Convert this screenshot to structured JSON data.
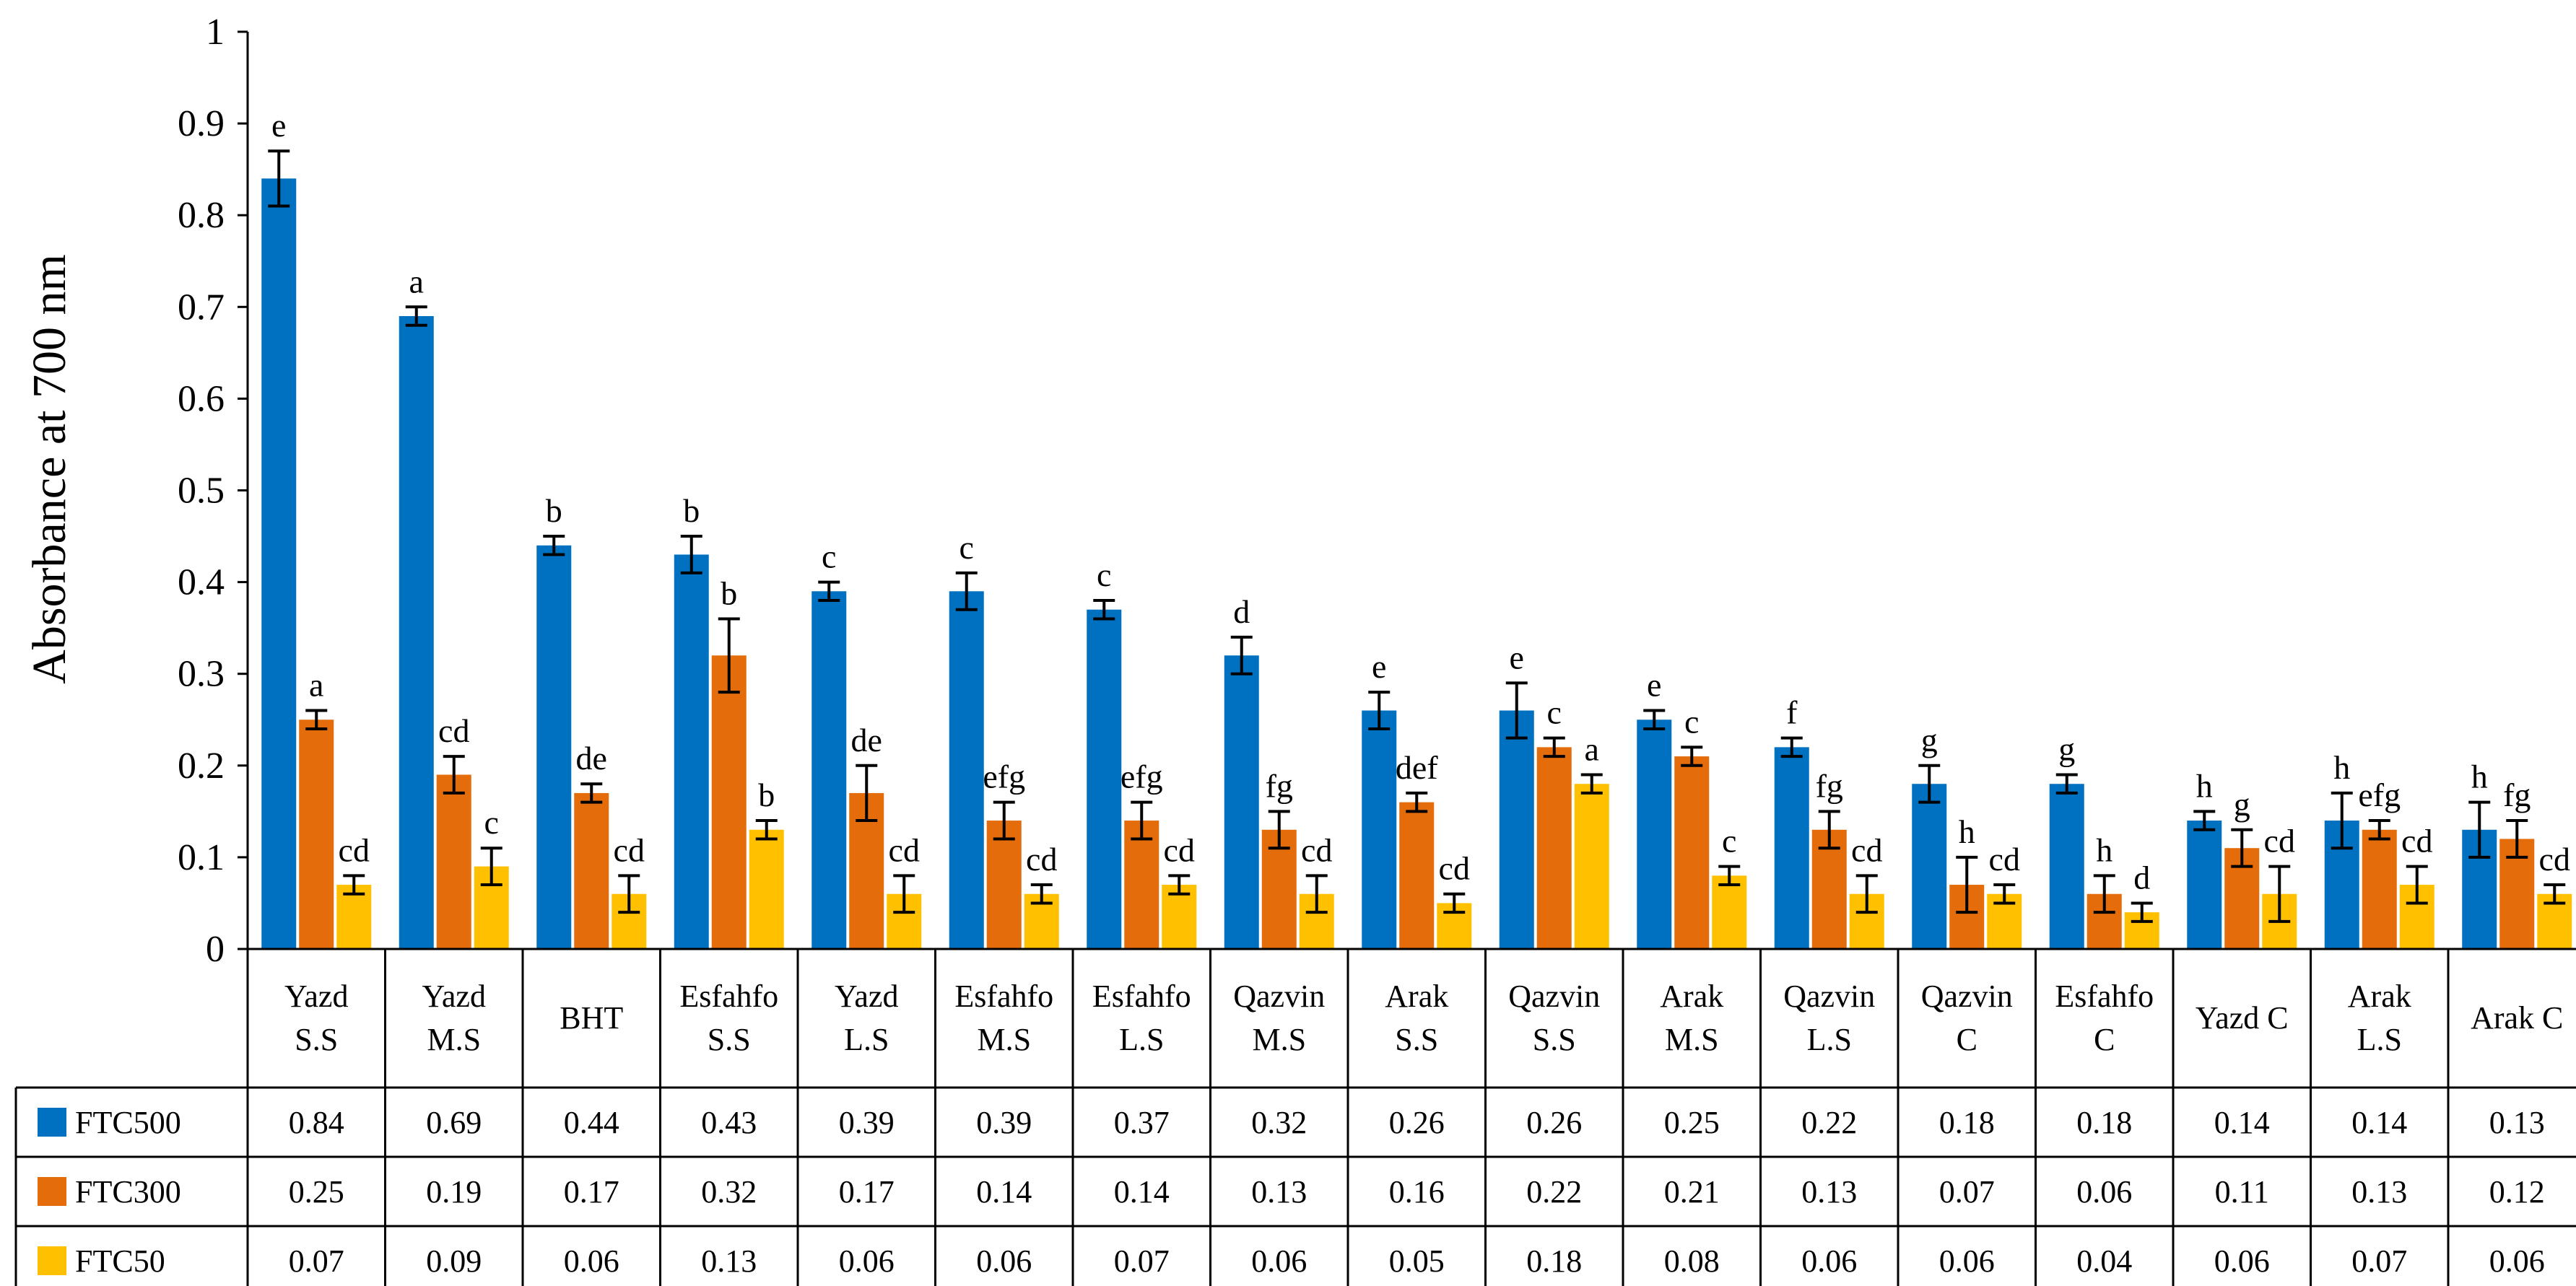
{
  "chart_data": {
    "type": "bar",
    "title": "",
    "xlabel": "",
    "ylabel": "Absorbance at 700 nm",
    "ylim": [
      0,
      1
    ],
    "yticks": [
      "0",
      "0.1",
      "0.2",
      "0.3",
      "0.4",
      "0.5",
      "0.6",
      "0.7",
      "0.8",
      "0.9",
      "1"
    ],
    "grid": false,
    "legend": "table-bottom",
    "categories": [
      [
        "Yazd",
        "S.S"
      ],
      [
        "Yazd",
        "M.S"
      ],
      [
        "BHT"
      ],
      [
        "Esfahfo",
        "S.S"
      ],
      [
        "Yazd",
        "L.S"
      ],
      [
        "Esfahfo",
        "M.S"
      ],
      [
        "Esfahfo",
        "L.S"
      ],
      [
        "Qazvin",
        "M.S"
      ],
      [
        "Arak",
        "S.S"
      ],
      [
        "Qazvin",
        "S.S"
      ],
      [
        "Arak",
        "M.S"
      ],
      [
        "Qazvin",
        "L.S"
      ],
      [
        "Qazvin",
        "C"
      ],
      [
        "Esfahfo",
        "C"
      ],
      [
        "Yazd C"
      ],
      [
        "Arak",
        "L.S"
      ],
      [
        "Arak C"
      ]
    ],
    "series": [
      {
        "name": "FTC500",
        "color": "#0070C0",
        "values": [
          0.84,
          0.69,
          0.44,
          0.43,
          0.39,
          0.39,
          0.37,
          0.32,
          0.26,
          0.26,
          0.25,
          0.22,
          0.18,
          0.18,
          0.14,
          0.14,
          0.13
        ],
        "labels": [
          "0.84",
          "0.69",
          "0.44",
          "0.43",
          "0.39",
          "0.39",
          "0.37",
          "0.32",
          "0.26",
          "0.26",
          "0.25",
          "0.22",
          "0.18",
          "0.18",
          "0.14",
          "0.14",
          "0.13"
        ],
        "errors": [
          0.03,
          0.01,
          0.01,
          0.02,
          0.01,
          0.02,
          0.01,
          0.02,
          0.02,
          0.03,
          0.01,
          0.01,
          0.02,
          0.01,
          0.01,
          0.03,
          0.03
        ],
        "letters": [
          "e",
          "a",
          "b",
          "b",
          "c",
          "c",
          "c",
          "d",
          "e",
          "e",
          "e",
          "f",
          "g",
          "g",
          "h",
          "h",
          "h"
        ]
      },
      {
        "name": "FTC300",
        "color": "#E46C0A",
        "values": [
          0.25,
          0.19,
          0.17,
          0.32,
          0.17,
          0.14,
          0.14,
          0.13,
          0.16,
          0.22,
          0.21,
          0.13,
          0.07,
          0.06,
          0.11,
          0.13,
          0.12
        ],
        "labels": [
          "0.25",
          "0.19",
          "0.17",
          "0.32",
          "0.17",
          "0.14",
          "0.14",
          "0.13",
          "0.16",
          "0.22",
          "0.21",
          "0.13",
          "0.07",
          "0.06",
          "0.11",
          "0.13",
          "0.12"
        ],
        "errors": [
          0.01,
          0.02,
          0.01,
          0.04,
          0.03,
          0.02,
          0.02,
          0.02,
          0.01,
          0.01,
          0.01,
          0.02,
          0.03,
          0.02,
          0.02,
          0.01,
          0.02
        ],
        "letters": [
          "a",
          "cd",
          "de",
          "b",
          "de",
          "efg",
          "efg",
          "fg",
          "def",
          "c",
          "c",
          "fg",
          "h",
          "h",
          "g",
          "efg",
          "fg"
        ]
      },
      {
        "name": "FTC50",
        "color": "#FFC000",
        "values": [
          0.07,
          0.09,
          0.06,
          0.13,
          0.06,
          0.06,
          0.07,
          0.06,
          0.05,
          0.18,
          0.08,
          0.06,
          0.06,
          0.04,
          0.06,
          0.07,
          0.06
        ],
        "labels": [
          "0.07",
          "0.09",
          "0.06",
          "0.13",
          "0.06",
          "0.06",
          "0.07",
          "0.06",
          "0.05",
          "0.18",
          "0.08",
          "0.06",
          "0.06",
          "0.04",
          "0.06",
          "0.07",
          "0.06"
        ],
        "errors": [
          0.01,
          0.02,
          0.02,
          0.01,
          0.02,
          0.01,
          0.01,
          0.02,
          0.01,
          0.01,
          0.01,
          0.02,
          0.01,
          0.01,
          0.03,
          0.02,
          0.01
        ],
        "letters": [
          "cd",
          "c",
          "cd",
          "b",
          "cd",
          "cd",
          "cd",
          "cd",
          "cd",
          "a",
          "c",
          "cd",
          "cd",
          "d",
          "cd",
          "cd",
          "cd"
        ]
      }
    ]
  }
}
